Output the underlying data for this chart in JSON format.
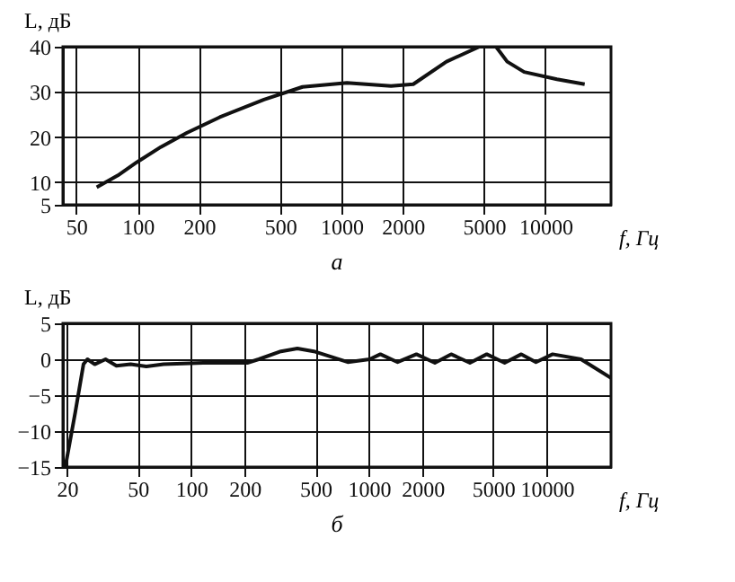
{
  "chart_data": [
    {
      "type": "line",
      "ylabel": "L, дБ",
      "xlabel": "f, Гц",
      "annotations": [
        "а"
      ],
      "log": "x",
      "grid": true,
      "color": "#111111",
      "x": [
        63,
        80,
        99,
        130,
        174,
        253,
        417,
        644,
        1064,
        1750,
        2250,
        3275,
        4750,
        5730,
        6500,
        7870,
        11400,
        15600
      ],
      "values": [
        8.9,
        11.5,
        14.4,
        17.8,
        20.9,
        24.4,
        28.3,
        31.1,
        32,
        31.3,
        31.7,
        36.7,
        40,
        40,
        36.7,
        34.4,
        32.8,
        31.7
      ],
      "xlim": [
        43,
        21000
      ],
      "xticks": [
        50,
        100,
        200,
        500,
        1000,
        2000,
        5000,
        10000
      ],
      "ylim": [
        5,
        40
      ],
      "yticks": [
        5,
        10,
        20,
        30,
        40
      ]
    },
    {
      "type": "line",
      "ylabel": "L, дБ",
      "xlabel": "f, Гц",
      "annotations": [
        "б"
      ],
      "log": "x",
      "grid": true,
      "color": "#111111",
      "x": [
        19.6,
        22.3,
        24.8,
        26.1,
        28.7,
        33,
        38,
        45.7,
        56,
        70,
        117,
        207,
        240,
        320,
        396,
        490,
        760,
        1010,
        1160,
        1450,
        1850,
        2350,
        2900,
        3700,
        4600,
        5800,
        7200,
        8700,
        10800,
        15600,
        23000
      ],
      "values": [
        -15,
        -7.4,
        -0.7,
        0,
        -0.7,
        0,
        -0.9,
        -0.7,
        -1,
        -0.7,
        -0.5,
        -0.5,
        0,
        1.1,
        1.5,
        1.1,
        -0.4,
        0,
        0.7,
        -0.4,
        0.7,
        -0.5,
        0.7,
        -0.5,
        0.7,
        -0.5,
        0.7,
        -0.4,
        0.7,
        0,
        -2.6
      ],
      "xlim": [
        19,
        23000
      ],
      "xticks": [
        20,
        50,
        100,
        200,
        500,
        1000,
        2000,
        5000,
        10000
      ],
      "ylim": [
        -15,
        5
      ],
      "yticks": [
        -15,
        -10,
        -5,
        0,
        5
      ]
    }
  ]
}
